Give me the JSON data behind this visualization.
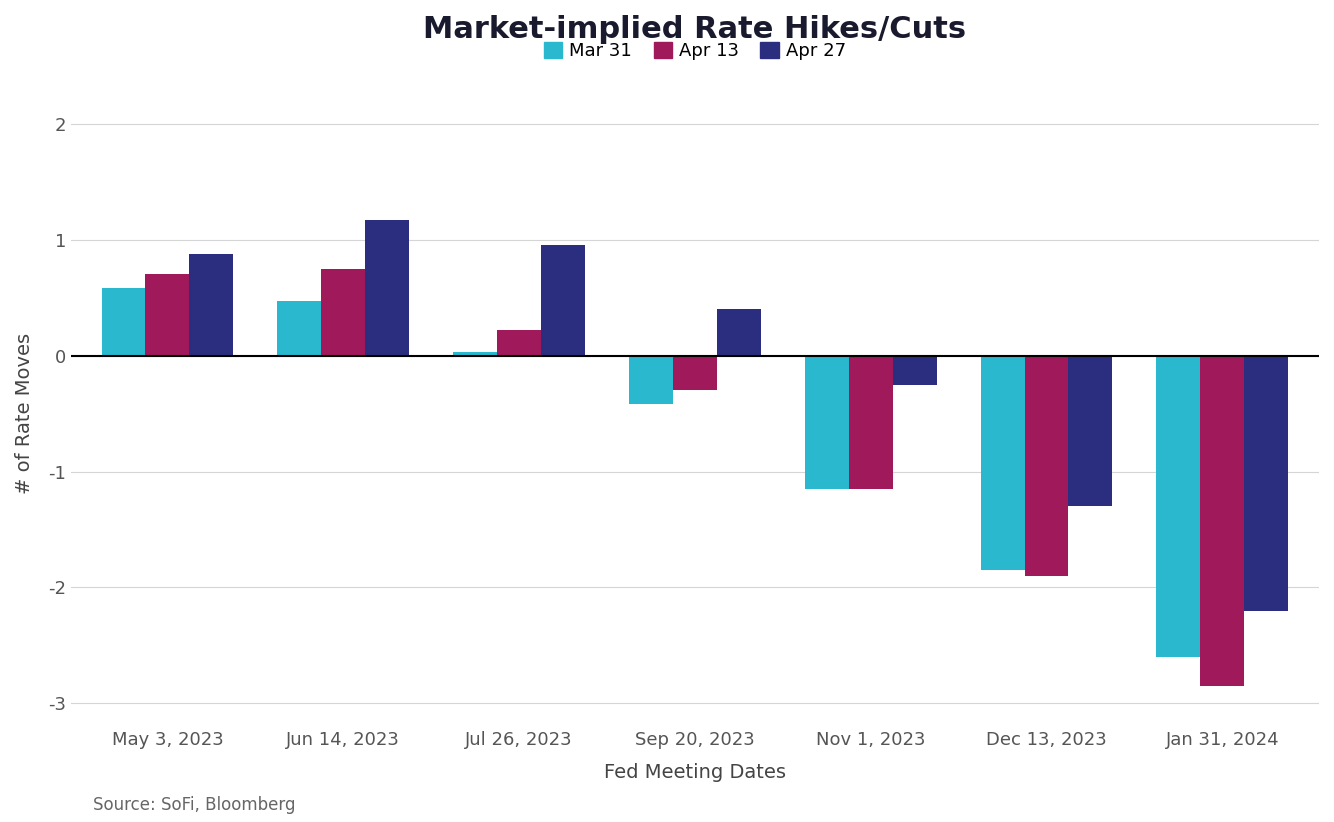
{
  "title": "Market-implied Rate Hikes/Cuts",
  "xlabel": "Fed Meeting Dates",
  "ylabel": "# of Rate Moves",
  "source": "Source: SoFi, Bloomberg",
  "categories": [
    "May 3, 2023",
    "Jun 14, 2023",
    "Jul 26, 2023",
    "Sep 20, 2023",
    "Nov 1, 2023",
    "Dec 13, 2023",
    "Jan 31, 2024"
  ],
  "legend_labels": [
    "Mar 31",
    "Apr 13",
    "Apr 27"
  ],
  "colors": [
    "#29B8CE",
    "#A0195A",
    "#2B2D7E"
  ],
  "series": {
    "Mar 31": [
      0.58,
      0.47,
      0.03,
      -0.42,
      -1.15,
      -1.85,
      -2.6
    ],
    "Apr 13": [
      0.7,
      0.75,
      0.22,
      -0.3,
      -1.15,
      -1.9,
      -2.85
    ],
    "Apr 27": [
      0.88,
      1.17,
      0.95,
      0.4,
      -0.25,
      -1.3,
      -2.2
    ]
  },
  "ylim": [
    -3.2,
    2.2
  ],
  "yticks": [
    -3,
    -2,
    -1,
    0,
    1,
    2
  ],
  "background_color": "#ffffff",
  "grid_color": "#d5d5d5",
  "bar_width": 0.25,
  "title_fontsize": 22,
  "label_fontsize": 14,
  "tick_fontsize": 13,
  "legend_fontsize": 13,
  "source_fontsize": 12,
  "title_color": "#1a1a2e",
  "axis_label_color": "#444444",
  "tick_color": "#555555"
}
